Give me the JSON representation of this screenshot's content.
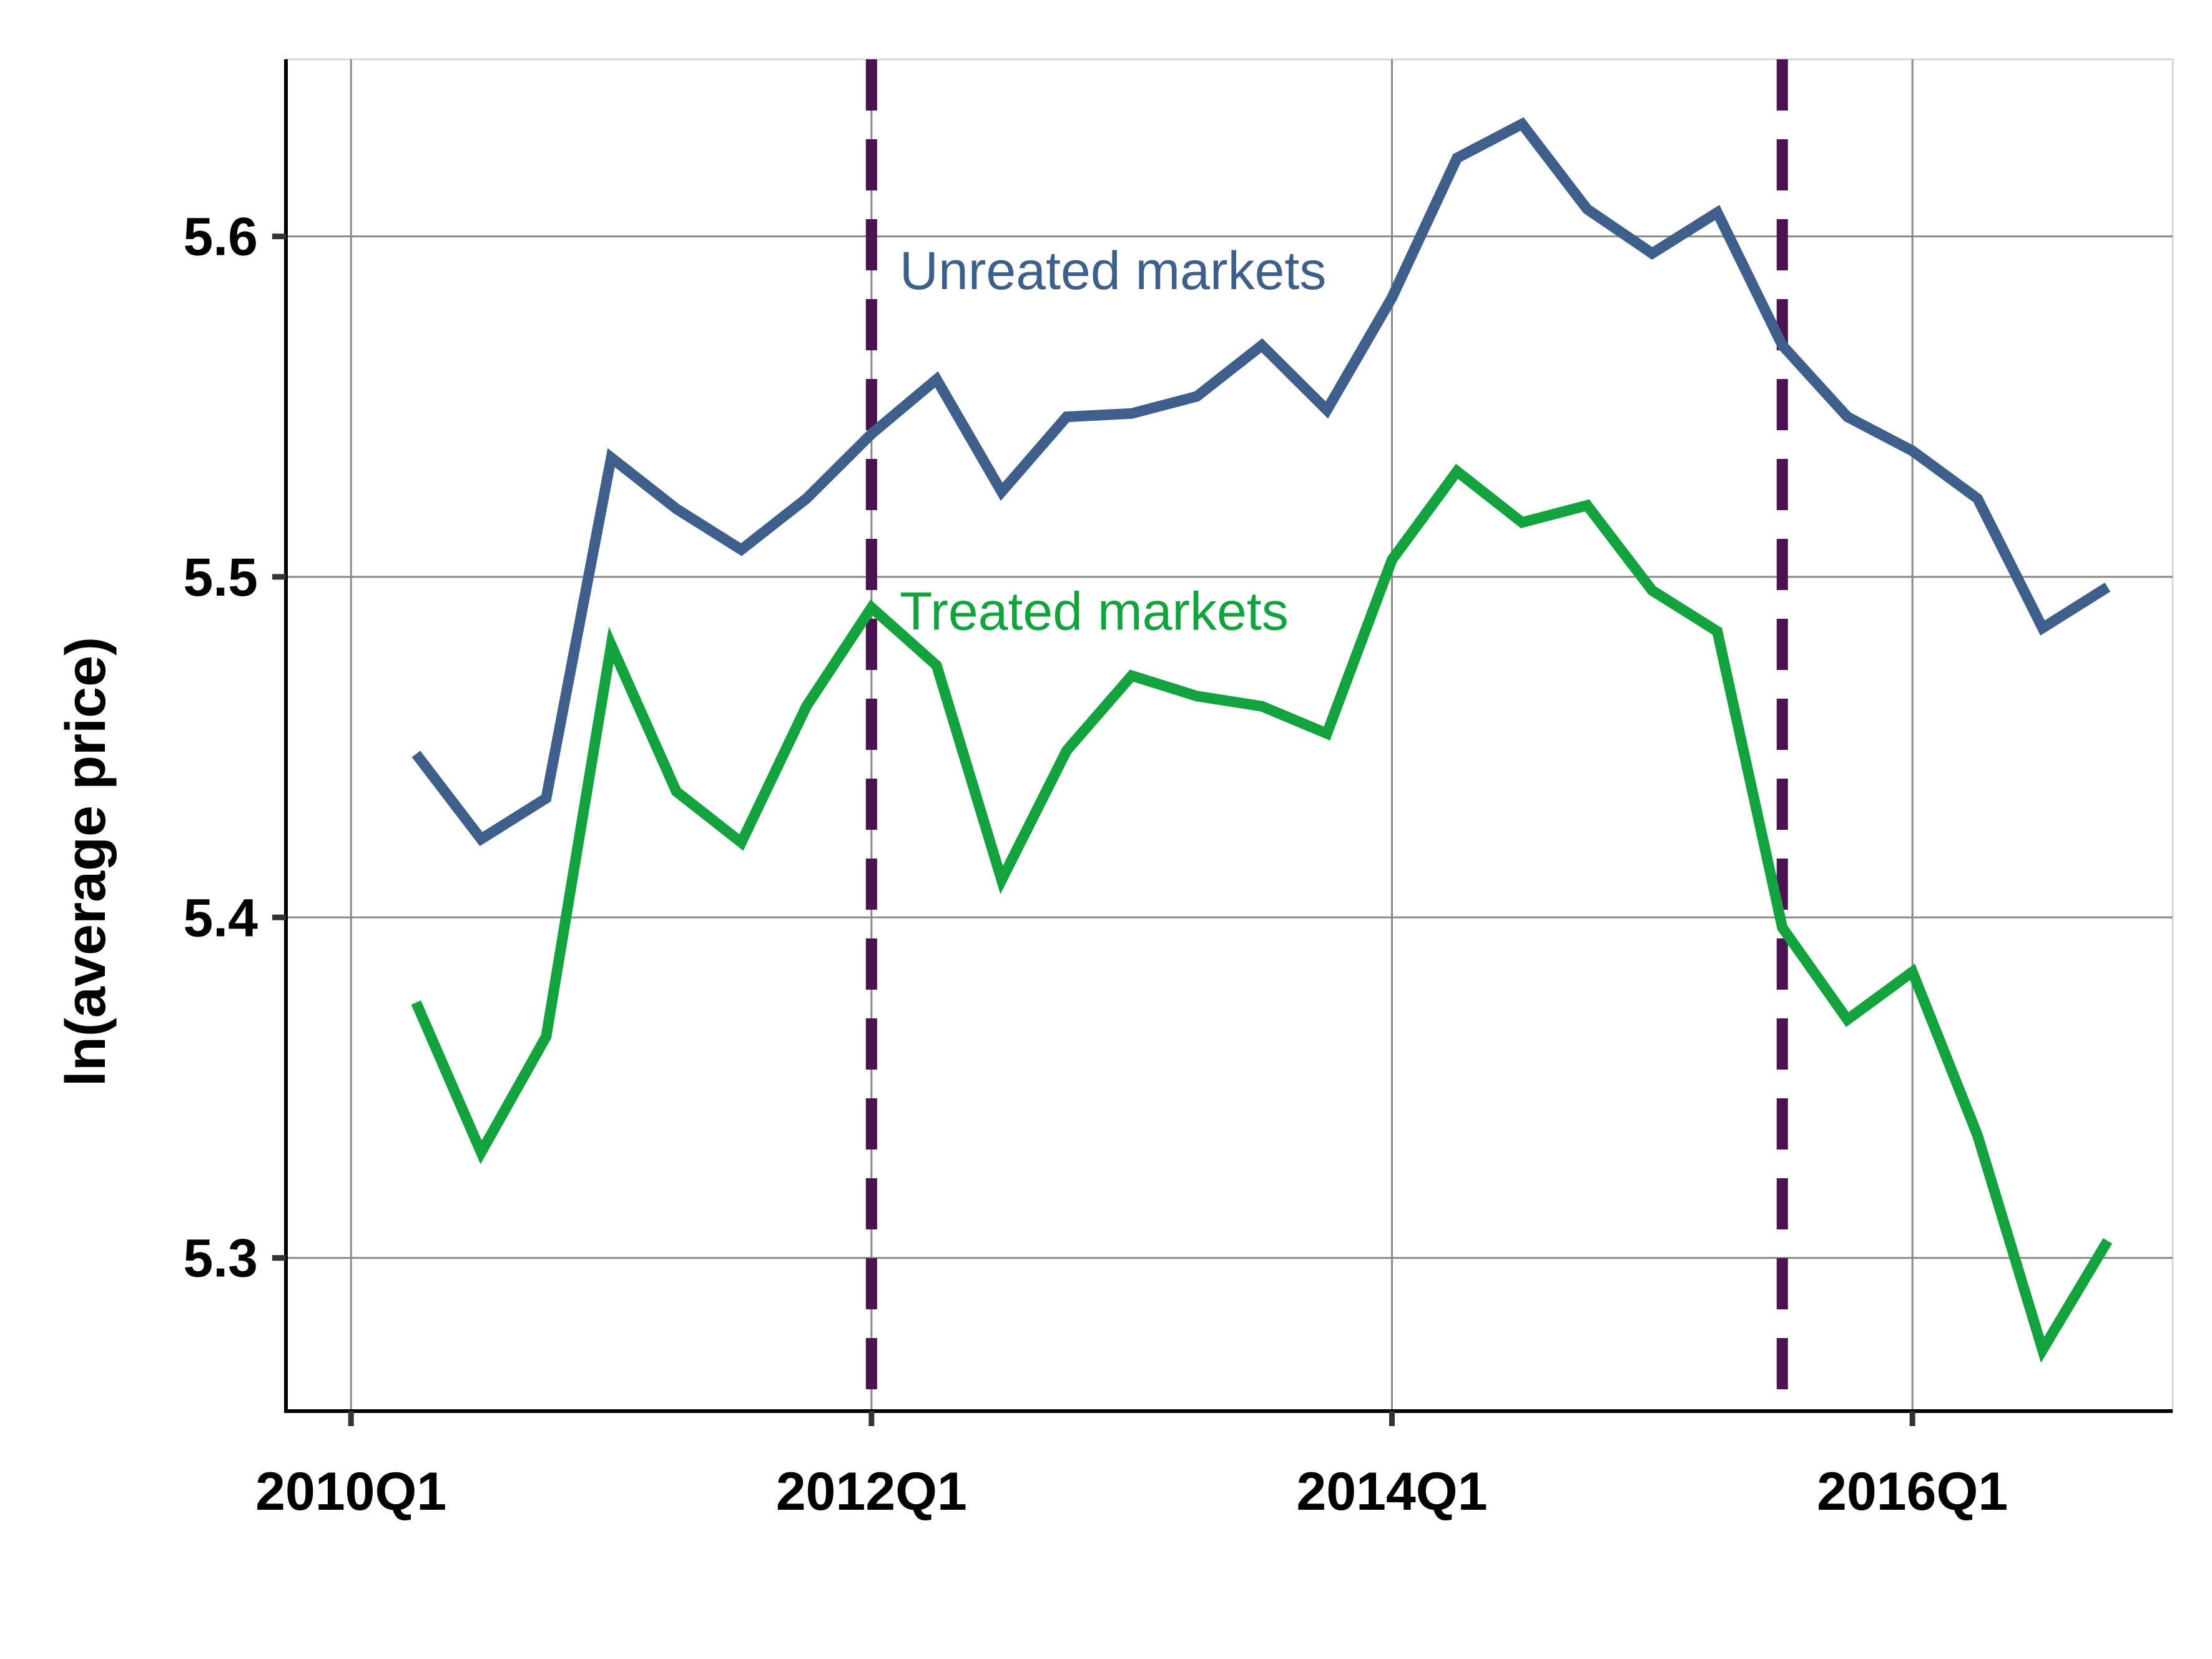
{
  "chart_data": {
    "type": "line",
    "title": "",
    "xlabel": "",
    "ylabel": "ln(average price)",
    "xlim": [
      "2009Q4",
      "2017Q1"
    ],
    "ylim": [
      5.255,
      5.652
    ],
    "x_ticks": [
      "2010Q1",
      "2012Q1",
      "2014Q1",
      "2016Q1"
    ],
    "y_ticks": [
      "5.3",
      "5.4",
      "5.5",
      "5.6"
    ],
    "grid": true,
    "legend": "none",
    "x": [
      "2010Q2",
      "2010Q3",
      "2010Q4",
      "2011Q1",
      "2011Q2",
      "2011Q3",
      "2011Q4",
      "2012Q1",
      "2012Q2",
      "2012Q3",
      "2012Q4",
      "2013Q1",
      "2013Q2",
      "2013Q3",
      "2013Q4",
      "2014Q1",
      "2014Q2",
      "2014Q3",
      "2014Q4",
      "2015Q1",
      "2015Q2",
      "2015Q3",
      "2015Q4",
      "2016Q1",
      "2016Q2",
      "2016Q3",
      "2016Q4"
    ],
    "series": [
      {
        "name": "Unreated markets",
        "color": "#3e5f8a",
        "values": [
          5.448,
          5.423,
          5.435,
          5.535,
          5.52,
          5.508,
          5.523,
          5.542,
          5.558,
          5.525,
          5.547,
          5.548,
          5.553,
          5.568,
          5.549,
          5.582,
          5.623,
          5.633,
          5.608,
          5.595,
          5.607,
          5.568,
          5.547,
          5.537,
          5.523,
          5.485,
          5.497
        ]
      },
      {
        "name": "Treated markets",
        "color": "#12a23e",
        "values": [
          5.375,
          5.331,
          5.365,
          5.48,
          5.437,
          5.422,
          5.462,
          5.491,
          5.474,
          5.411,
          5.449,
          5.471,
          5.465,
          5.462,
          5.454,
          5.505,
          5.531,
          5.516,
          5.521,
          5.496,
          5.484,
          5.397,
          5.37,
          5.384,
          5.336,
          5.273,
          5.305
        ]
      }
    ],
    "vlines": {
      "positions": [
        "2012Q1",
        "2015Q3"
      ],
      "color": "#4a1350",
      "style": "dashed"
    },
    "annotations": [
      {
        "text": "Unreated markets",
        "series": 0,
        "anchor_x": "2012Q1",
        "anchor_y": 5.59
      },
      {
        "text": "Treated markets",
        "series": 1,
        "anchor_x": "2012Q1",
        "anchor_y": 5.49
      }
    ]
  }
}
